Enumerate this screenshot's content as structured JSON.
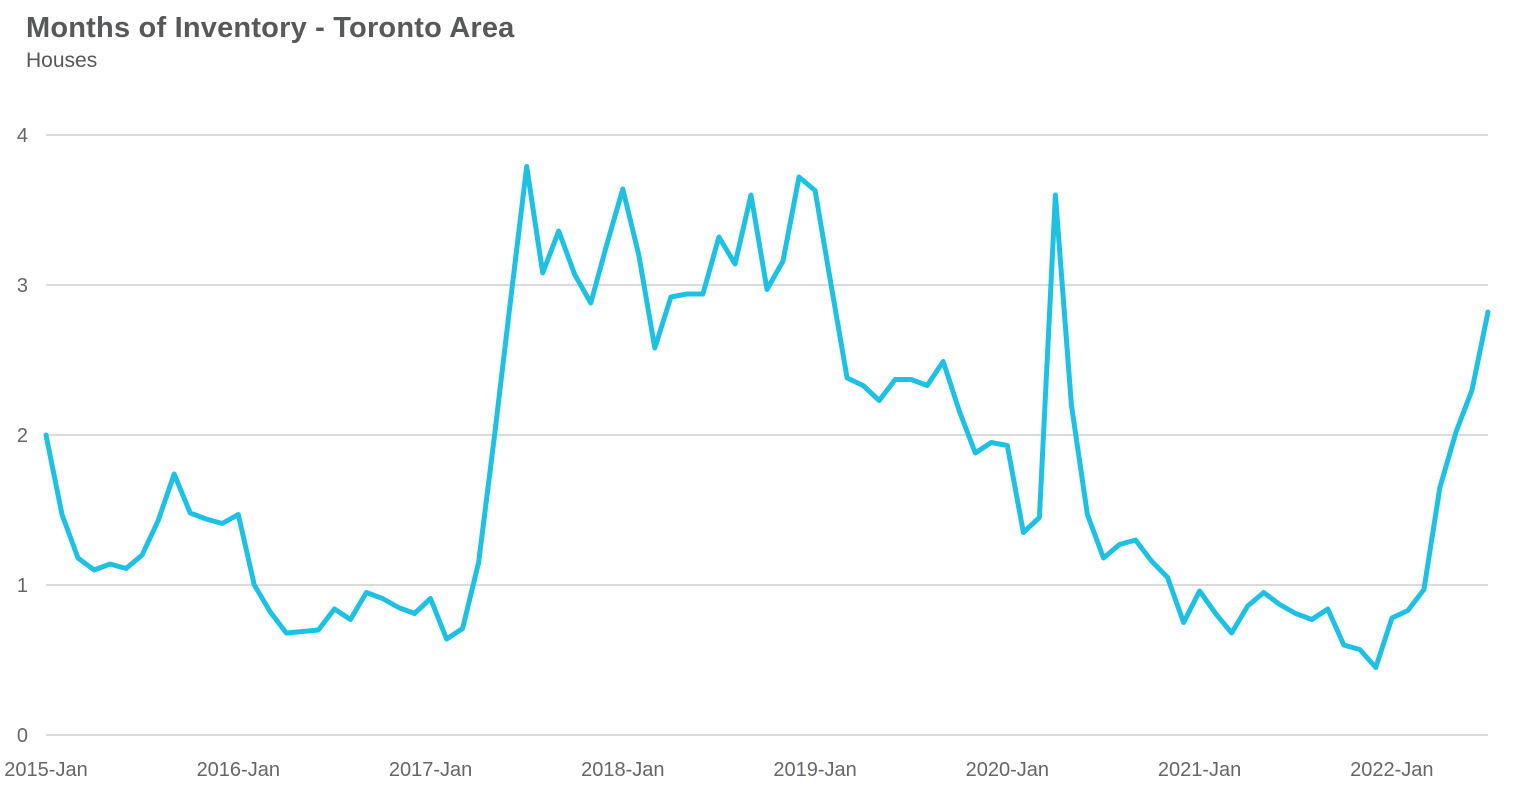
{
  "header": {
    "title": "Months of Inventory - Toronto Area",
    "subtitle": "Houses"
  },
  "chart_data": {
    "type": "line",
    "title": "Months of Inventory - Toronto Area",
    "subtitle": "Houses",
    "xlabel": "",
    "ylabel": "",
    "ylim": [
      0,
      4
    ],
    "y_ticks": [
      0,
      1,
      2,
      3,
      4
    ],
    "grid": true,
    "legend_position": "none",
    "x_tick_labels": [
      "2015-Jan",
      "2016-Jan",
      "2017-Jan",
      "2018-Jan",
      "2019-Jan",
      "2020-Jan",
      "2021-Jan",
      "2022-Jan"
    ],
    "x_ticks_every_n_points": 12,
    "line_color": "#1fc1e3",
    "grid_color": "#dbdbdb",
    "title_color": "#57585a",
    "tick_text_color": "#646769",
    "x": [
      "2015-Jan",
      "2015-Feb",
      "2015-Mar",
      "2015-Apr",
      "2015-May",
      "2015-Jun",
      "2015-Jul",
      "2015-Aug",
      "2015-Sep",
      "2015-Oct",
      "2015-Nov",
      "2015-Dec",
      "2016-Jan",
      "2016-Feb",
      "2016-Mar",
      "2016-Apr",
      "2016-May",
      "2016-Jun",
      "2016-Jul",
      "2016-Aug",
      "2016-Sep",
      "2016-Oct",
      "2016-Nov",
      "2016-Dec",
      "2017-Jan",
      "2017-Feb",
      "2017-Mar",
      "2017-Apr",
      "2017-May",
      "2017-Jun",
      "2017-Jul",
      "2017-Aug",
      "2017-Sep",
      "2017-Oct",
      "2017-Nov",
      "2017-Dec",
      "2018-Jan",
      "2018-Feb",
      "2018-Mar",
      "2018-Apr",
      "2018-May",
      "2018-Jun",
      "2018-Jul",
      "2018-Aug",
      "2018-Sep",
      "2018-Oct",
      "2018-Nov",
      "2018-Dec",
      "2019-Jan",
      "2019-Feb",
      "2019-Mar",
      "2019-Apr",
      "2019-May",
      "2019-Jun",
      "2019-Jul",
      "2019-Aug",
      "2019-Sep",
      "2019-Oct",
      "2019-Nov",
      "2019-Dec",
      "2020-Jan",
      "2020-Feb",
      "2020-Mar",
      "2020-Apr",
      "2020-May",
      "2020-Jun",
      "2020-Jul",
      "2020-Aug",
      "2020-Sep",
      "2020-Oct",
      "2020-Nov",
      "2020-Dec",
      "2021-Jan",
      "2021-Feb",
      "2021-Mar",
      "2021-Apr",
      "2021-May",
      "2021-Jun",
      "2021-Jul",
      "2021-Aug",
      "2021-Sep",
      "2021-Oct",
      "2021-Nov",
      "2021-Dec",
      "2022-Jan",
      "2022-Feb",
      "2022-Mar",
      "2022-Apr",
      "2022-May",
      "2022-Jun",
      "2022-Jul"
    ],
    "series": [
      {
        "name": "Months of Inventory - Houses",
        "values": [
          2.0,
          1.47,
          1.18,
          1.1,
          1.14,
          1.11,
          1.2,
          1.43,
          1.74,
          1.48,
          1.44,
          1.41,
          1.47,
          1.0,
          0.82,
          0.68,
          0.69,
          0.7,
          0.84,
          0.77,
          0.95,
          0.91,
          0.85,
          0.81,
          0.91,
          0.64,
          0.71,
          1.15,
          2.0,
          2.9,
          3.79,
          3.08,
          3.36,
          3.07,
          2.88,
          3.27,
          3.64,
          3.2,
          2.58,
          2.92,
          2.94,
          2.94,
          3.32,
          3.14,
          3.6,
          2.97,
          3.16,
          3.72,
          3.63,
          3.0,
          2.38,
          2.33,
          2.23,
          2.37,
          2.37,
          2.33,
          2.49,
          2.16,
          1.88,
          1.95,
          1.93,
          1.35,
          1.45,
          3.6,
          2.2,
          1.47,
          1.18,
          1.27,
          1.3,
          1.16,
          1.05,
          0.75,
          0.96,
          0.81,
          0.68,
          0.86,
          0.95,
          0.87,
          0.81,
          0.77,
          0.84,
          0.6,
          0.57,
          0.45,
          0.78,
          0.83,
          0.97,
          1.65,
          2.02,
          2.3,
          2.82
        ]
      }
    ]
  }
}
